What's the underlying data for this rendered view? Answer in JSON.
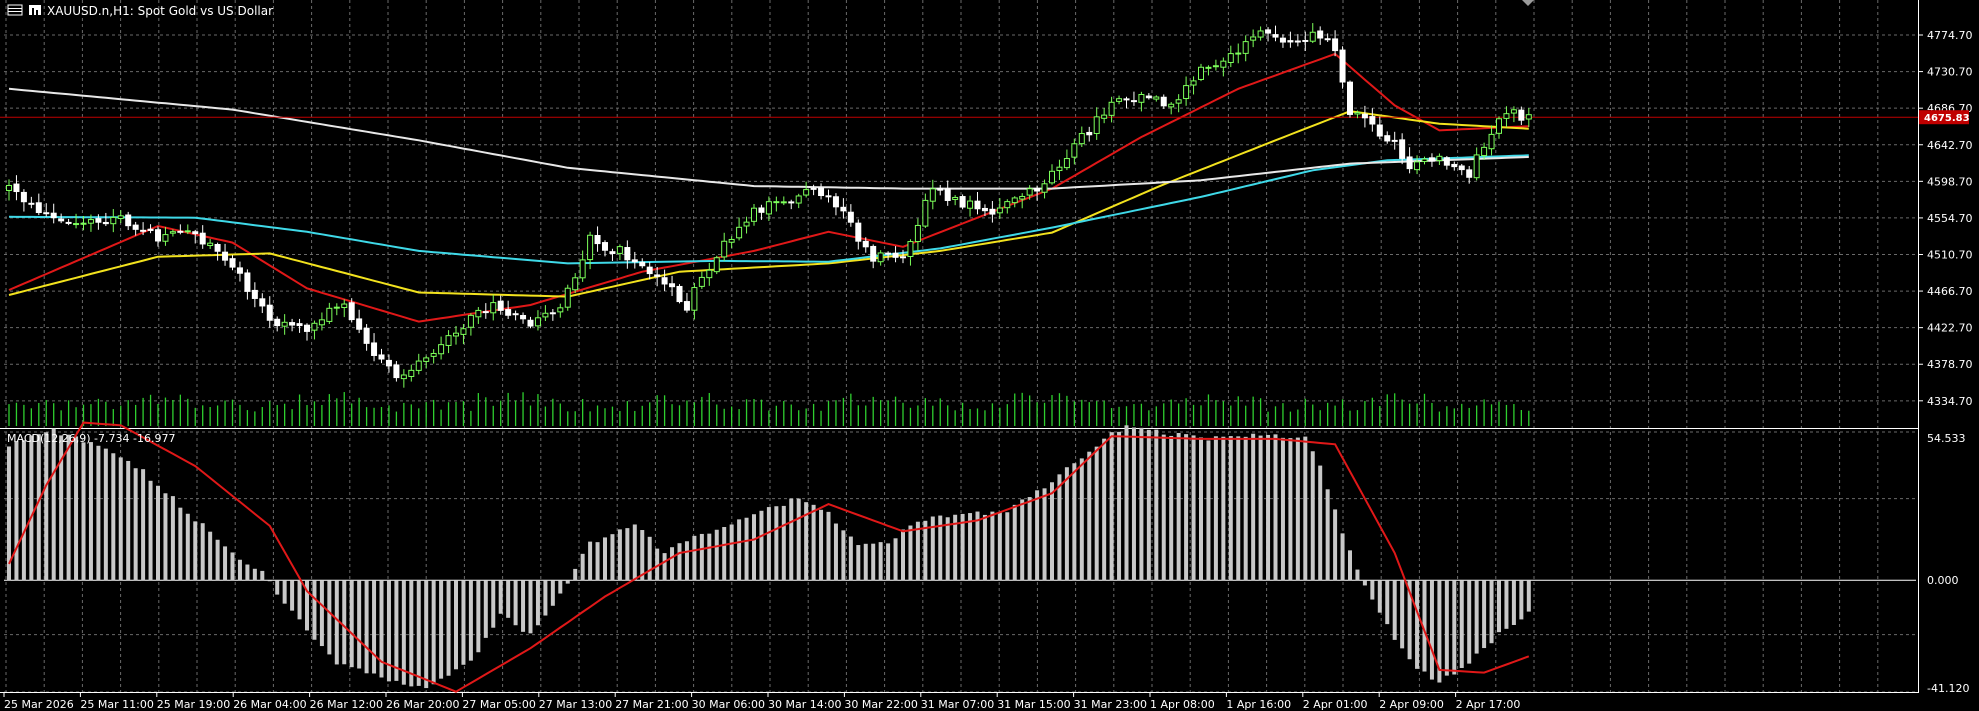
{
  "header": {
    "symbol_line": "XAUUSD.n,H1:  Spot Gold vs US Dollar"
  },
  "indicator": {
    "label": "MACD(12,26,9) -7.734 -16.977"
  },
  "current_price_label": "4675.83",
  "colors": {
    "background": "#000000",
    "grid": "#6a6a6a",
    "bull_candle": "#7cff5a",
    "bear_candle": "#ffffff",
    "volume": "#2fcf2f",
    "ma_fast": "#e01818",
    "ma_mid": "#f2e21e",
    "ma_slow": "#3fd9e8",
    "ma_long": "#e8e8e8",
    "price_line": "#c00000",
    "macd_hist": "#c8c8c8",
    "macd_signal": "#e01818"
  },
  "chart_data": [
    {
      "type": "line",
      "panel": "price",
      "x_labels": [
        "25 Mar 2026",
        "25 Mar 11:00",
        "25 Mar 19:00",
        "26 Mar 04:00",
        "26 Mar 12:00",
        "26 Mar 20:00",
        "27 Mar 05:00",
        "27 Mar 13:00",
        "27 Mar 21:00",
        "30 Mar 06:00",
        "30 Mar 14:00",
        "30 Mar 22:00",
        "31 Mar 07:00",
        "31 Mar 15:00",
        "31 Mar 23:00",
        "1 Apr 08:00",
        "1 Apr 16:00",
        "2 Apr 01:00",
        "2 Apr 09:00",
        "2 Apr 17:00"
      ],
      "y_ticks": [
        4774.7,
        4730.7,
        4686.7,
        4642.7,
        4598.7,
        4554.7,
        4510.7,
        4466.7,
        4422.7,
        4378.7,
        4334.7
      ],
      "ylim": [
        4302,
        4812
      ],
      "current_price": 4675.83,
      "close_anchors": [
        [
          0,
          4590
        ],
        [
          5,
          4560
        ],
        [
          10,
          4550
        ],
        [
          15,
          4555
        ],
        [
          20,
          4530
        ],
        [
          25,
          4535
        ],
        [
          30,
          4500
        ],
        [
          35,
          4430
        ],
        [
          40,
          4425
        ],
        [
          45,
          4455
        ],
        [
          48,
          4400
        ],
        [
          52,
          4365
        ],
        [
          56,
          4385
        ],
        [
          60,
          4420
        ],
        [
          65,
          4450
        ],
        [
          70,
          4430
        ],
        [
          74,
          4445
        ],
        [
          78,
          4530
        ],
        [
          83,
          4510
        ],
        [
          87,
          4485
        ],
        [
          91,
          4450
        ],
        [
          95,
          4510
        ],
        [
          100,
          4560
        ],
        [
          104,
          4575
        ],
        [
          108,
          4590
        ],
        [
          112,
          4560
        ],
        [
          116,
          4505
        ],
        [
          120,
          4512
        ],
        [
          124,
          4590
        ],
        [
          128,
          4570
        ],
        [
          132,
          4565
        ],
        [
          136,
          4575
        ],
        [
          140,
          4610
        ],
        [
          144,
          4650
        ],
        [
          148,
          4690
        ],
        [
          152,
          4705
        ],
        [
          156,
          4690
        ],
        [
          160,
          4730
        ],
        [
          164,
          4750
        ],
        [
          168,
          4780
        ],
        [
          172,
          4760
        ],
        [
          176,
          4775
        ],
        [
          178,
          4760
        ],
        [
          180,
          4680
        ],
        [
          184,
          4660
        ],
        [
          188,
          4620
        ],
        [
          192,
          4628
        ],
        [
          196,
          4610
        ],
        [
          200,
          4678
        ],
        [
          204,
          4678
        ]
      ],
      "moving_averages": [
        {
          "role": "fast",
          "anchors": [
            [
              0,
              4468
            ],
            [
              20,
              4545
            ],
            [
              30,
              4525
            ],
            [
              40,
              4470
            ],
            [
              55,
              4430
            ],
            [
              70,
              4450
            ],
            [
              85,
              4490
            ],
            [
              100,
              4515
            ],
            [
              110,
              4538
            ],
            [
              120,
              4520
            ],
            [
              130,
              4555
            ],
            [
              140,
              4590
            ],
            [
              152,
              4652
            ],
            [
              165,
              4710
            ],
            [
              178,
              4752
            ],
            [
              186,
              4690
            ],
            [
              192,
              4660
            ],
            [
              204,
              4665
            ]
          ]
        },
        {
          "role": "mid",
          "anchors": [
            [
              0,
              4462
            ],
            [
              20,
              4508
            ],
            [
              35,
              4512
            ],
            [
              55,
              4465
            ],
            [
              75,
              4460
            ],
            [
              90,
              4490
            ],
            [
              110,
              4500
            ],
            [
              125,
              4515
            ],
            [
              140,
              4537
            ],
            [
              155,
              4595
            ],
            [
              170,
              4648
            ],
            [
              180,
              4683
            ],
            [
              192,
              4668
            ],
            [
              204,
              4662
            ]
          ]
        },
        {
          "role": "slow",
          "anchors": [
            [
              0,
              4556
            ],
            [
              25,
              4555
            ],
            [
              40,
              4538
            ],
            [
              55,
              4515
            ],
            [
              75,
              4500
            ],
            [
              95,
              4503
            ],
            [
              110,
              4502
            ],
            [
              125,
              4518
            ],
            [
              140,
              4543
            ],
            [
              160,
              4580
            ],
            [
              175,
              4612
            ],
            [
              185,
              4624
            ],
            [
              204,
              4630
            ]
          ]
        },
        {
          "role": "long",
          "anchors": [
            [
              0,
              4710
            ],
            [
              30,
              4685
            ],
            [
              55,
              4648
            ],
            [
              75,
              4615
            ],
            [
              100,
              4593
            ],
            [
              120,
              4590
            ],
            [
              140,
              4590
            ],
            [
              160,
              4600
            ],
            [
              180,
              4620
            ],
            [
              195,
              4625
            ],
            [
              204,
              4628
            ]
          ]
        }
      ]
    },
    {
      "type": "bar",
      "panel": "macd",
      "title": "MACD(12,26,9) -7.734 -16.977",
      "y_ticks": [
        54.533,
        0.0,
        -41.12
      ],
      "ylim": [
        -41.12,
        54.533
      ],
      "histogram_anchors": [
        [
          0,
          50
        ],
        [
          6,
          55
        ],
        [
          12,
          50
        ],
        [
          18,
          40
        ],
        [
          24,
          25
        ],
        [
          30,
          10
        ],
        [
          34,
          3
        ],
        [
          38,
          -12
        ],
        [
          44,
          -30
        ],
        [
          50,
          -36
        ],
        [
          56,
          -40
        ],
        [
          62,
          -30
        ],
        [
          66,
          -12
        ],
        [
          70,
          -20
        ],
        [
          74,
          -5
        ],
        [
          78,
          14
        ],
        [
          84,
          20
        ],
        [
          88,
          10
        ],
        [
          94,
          18
        ],
        [
          100,
          25
        ],
        [
          106,
          30
        ],
        [
          110,
          25
        ],
        [
          114,
          12
        ],
        [
          118,
          14
        ],
        [
          122,
          22
        ],
        [
          128,
          24
        ],
        [
          134,
          26
        ],
        [
          140,
          36
        ],
        [
          146,
          50
        ],
        [
          150,
          57
        ],
        [
          156,
          54
        ],
        [
          162,
          52
        ],
        [
          168,
          54
        ],
        [
          174,
          52
        ],
        [
          176,
          42
        ],
        [
          180,
          10
        ],
        [
          184,
          -12
        ],
        [
          188,
          -30
        ],
        [
          192,
          -38
        ],
        [
          196,
          -30
        ],
        [
          200,
          -20
        ],
        [
          204,
          -12
        ]
      ],
      "signal_anchors": [
        [
          0,
          6
        ],
        [
          5,
          35
        ],
        [
          10,
          58
        ],
        [
          15,
          57
        ],
        [
          25,
          42
        ],
        [
          35,
          20
        ],
        [
          40,
          -4
        ],
        [
          50,
          -30
        ],
        [
          60,
          -41
        ],
        [
          70,
          -25
        ],
        [
          80,
          -6
        ],
        [
          90,
          10
        ],
        [
          100,
          15
        ],
        [
          110,
          28
        ],
        [
          120,
          18
        ],
        [
          130,
          22
        ],
        [
          140,
          32
        ],
        [
          148,
          53
        ],
        [
          160,
          52
        ],
        [
          170,
          52
        ],
        [
          178,
          50
        ],
        [
          186,
          10
        ],
        [
          192,
          -33
        ],
        [
          198,
          -34
        ],
        [
          204,
          -28
        ]
      ]
    }
  ]
}
